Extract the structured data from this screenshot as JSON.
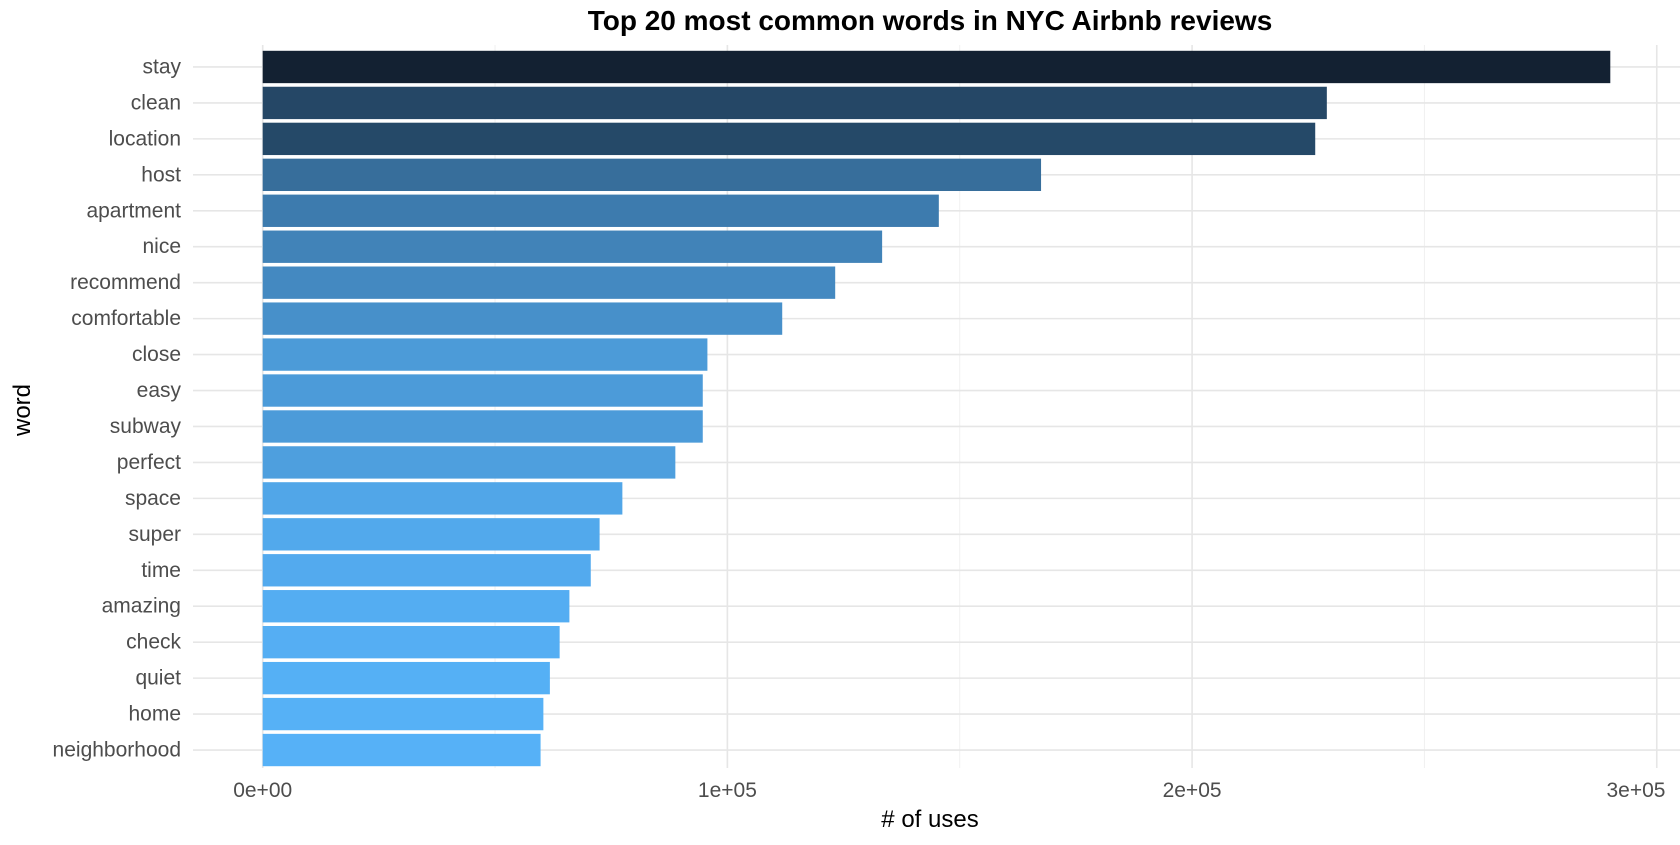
{
  "chart_data": {
    "type": "bar",
    "orientation": "horizontal",
    "title": "Top 20 most common words in NYC Airbnb reviews",
    "xlabel": "# of uses",
    "ylabel": "word",
    "categories": [
      "stay",
      "clean",
      "location",
      "host",
      "apartment",
      "nice",
      "recommend",
      "comfortable",
      "close",
      "easy",
      "subway",
      "perfect",
      "space",
      "super",
      "time",
      "amazing",
      "check",
      "quiet",
      "home",
      "neighborhood"
    ],
    "values": [
      290000,
      229000,
      226500,
      167500,
      145500,
      133300,
      123200,
      111800,
      95700,
      94700,
      94700,
      88800,
      77400,
      72500,
      70600,
      66000,
      63900,
      61800,
      60400,
      59800
    ],
    "xlim": [
      -15000,
      305000
    ],
    "xticks": [
      0,
      100000,
      200000,
      300000
    ],
    "xtick_labels": [
      "0e+00",
      "1e+05",
      "2e+05",
      "3e+05"
    ],
    "grid": true,
    "legend": "none",
    "colors": {
      "high": "#132132",
      "low": "#56B1F7"
    }
  }
}
